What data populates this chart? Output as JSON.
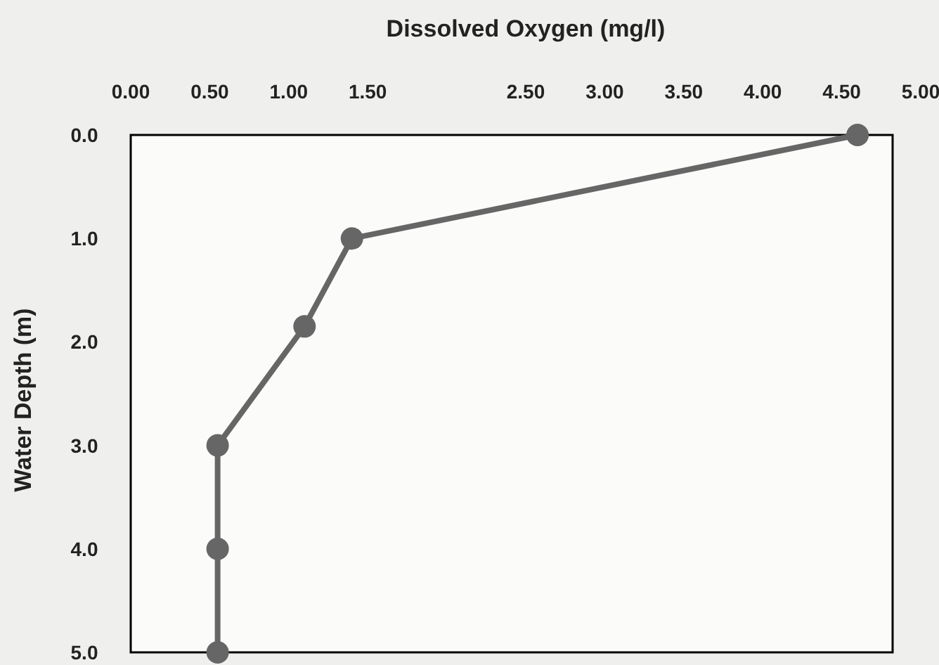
{
  "chart_data": {
    "type": "line",
    "xlabel": "Dissolved Oxygen (mg/l)",
    "ylabel": "Water Depth (m)",
    "xlim": [
      0,
      5
    ],
    "xticks": [
      {
        "value": 0,
        "label": "0.00"
      },
      {
        "value": 0.5,
        "label": "0.50"
      },
      {
        "value": 1,
        "label": "1.00"
      },
      {
        "value": 1.5,
        "label": "1.50"
      },
      {
        "value": 2.5,
        "label": "2.50"
      },
      {
        "value": 3,
        "label": "3.00"
      },
      {
        "value": 3.5,
        "label": "3.50"
      },
      {
        "value": 4,
        "label": "4.00"
      },
      {
        "value": 4.5,
        "label": "4.50"
      },
      {
        "value": 5,
        "label": "5.00"
      }
    ],
    "ylim": [
      5,
      0
    ],
    "yticks": [
      {
        "value": 0,
        "label": "0.0"
      },
      {
        "value": 1,
        "label": "1.0"
      },
      {
        "value": 2,
        "label": "2.0"
      },
      {
        "value": 3,
        "label": "3.0"
      },
      {
        "value": 4,
        "label": "4.0"
      },
      {
        "value": 5,
        "label": "5.0"
      }
    ],
    "series": [
      {
        "color": "#666666",
        "x": [
          4.6,
          1.4,
          1.1,
          0.55,
          0.55,
          0.55
        ],
        "values": [
          0,
          1,
          1.85,
          3,
          4,
          5
        ]
      }
    ],
    "marker": "circle",
    "line_style": "solid",
    "grid": false
  }
}
